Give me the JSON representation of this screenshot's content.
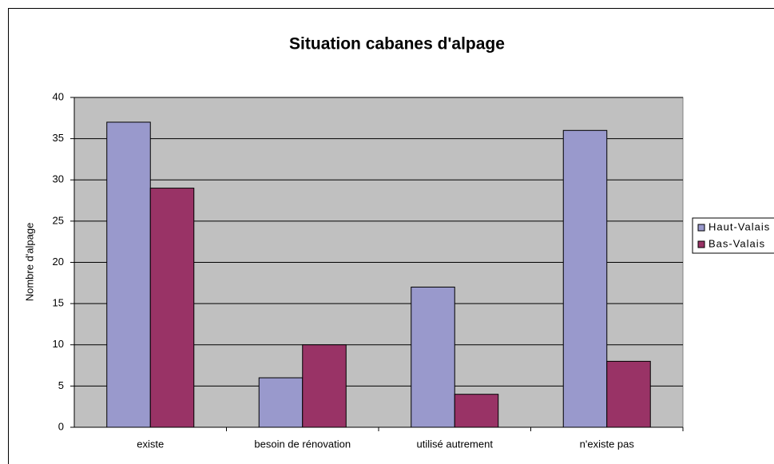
{
  "chart_data": {
    "type": "bar",
    "title": "Situation cabanes d'alpage",
    "y_label": "Nombre d'alpage",
    "categories": [
      "existe",
      "besoin de rénovation",
      "utilisé autrement",
      "n'existe pas"
    ],
    "series": [
      {
        "name": "Haut-Valais",
        "color": "#9999cc",
        "values": [
          37,
          6,
          17,
          36
        ]
      },
      {
        "name": "Bas-Valais",
        "color": "#993366",
        "values": [
          29,
          10,
          4,
          8
        ]
      }
    ],
    "ylim": [
      0,
      40
    ],
    "yticks": [
      0,
      5,
      10,
      15,
      20,
      25,
      30,
      35,
      40
    ],
    "grid": true,
    "legend": "right"
  }
}
